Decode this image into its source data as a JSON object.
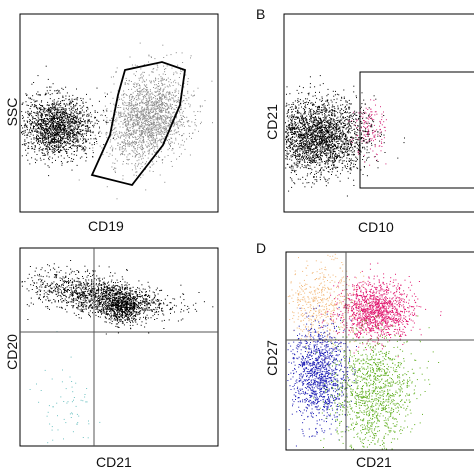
{
  "chart_data": [
    {
      "type": "scatter",
      "panel": "",
      "xlabel": "CD19",
      "ylabel": "SSC",
      "gate": "polygon",
      "series": [
        {
          "color": "#000000"
        },
        {
          "color": "#8c8c8c"
        }
      ]
    },
    {
      "type": "scatter",
      "panel": "B",
      "xlabel": "CD10",
      "ylabel": "CD21",
      "gate": "rectangle",
      "series": [
        {
          "color": "#000000"
        },
        {
          "color": "#d42a7a"
        }
      ]
    },
    {
      "type": "scatter",
      "panel": "",
      "xlabel": "CD21",
      "ylabel": "CD20",
      "gate": "quadrant",
      "series": [
        {
          "color": "#000000"
        },
        {
          "color": "#6fc2c2"
        }
      ]
    },
    {
      "type": "scatter",
      "panel": "D",
      "xlabel": "CD21",
      "ylabel": "CD27",
      "gate": "quadrant",
      "series": [
        {
          "color": "#f2b87a"
        },
        {
          "color": "#e0166e"
        },
        {
          "color": "#1c1cb4"
        },
        {
          "color": "#5fae1e"
        }
      ]
    }
  ]
}
